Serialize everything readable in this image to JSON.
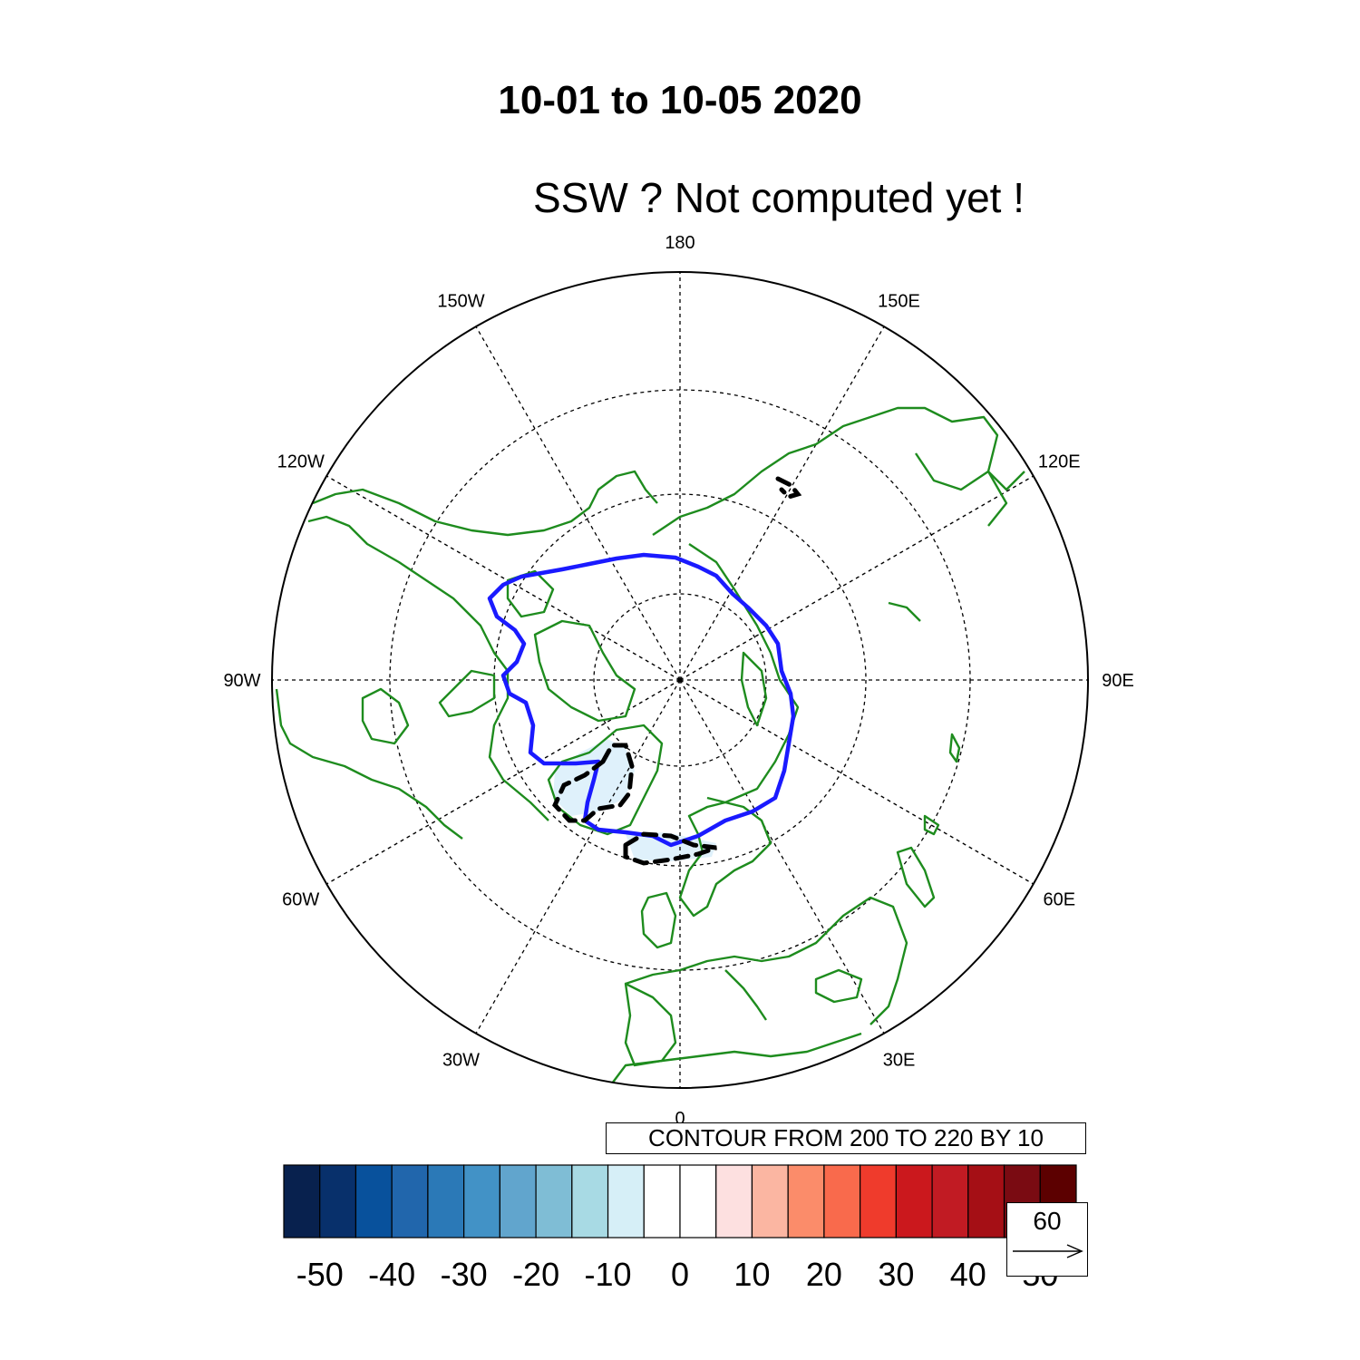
{
  "header": {
    "title": "10-01 to 10-05 2020",
    "subtitle": "SSW ?  Not computed yet !"
  },
  "map": {
    "projection": "north-polar-stereographic",
    "longitude_labels": [
      {
        "lon": 180,
        "text": "180"
      },
      {
        "lon": 150,
        "text": "150E"
      },
      {
        "lon": 120,
        "text": "120E"
      },
      {
        "lon": 90,
        "text": "90E"
      },
      {
        "lon": 60,
        "text": "60E"
      },
      {
        "lon": 30,
        "text": "30E"
      },
      {
        "lon": 0,
        "text": "0"
      },
      {
        "lon": -30,
        "text": "30W"
      },
      {
        "lon": -60,
        "text": "60W"
      },
      {
        "lon": -90,
        "text": "90W"
      },
      {
        "lon": -120,
        "text": "120W"
      },
      {
        "lon": -150,
        "text": "150W"
      }
    ],
    "gridlines": "dashed",
    "coastline_color": "#1e8c1e",
    "contour_line_color": "#1a1aff",
    "negative_contour_color": "#000000"
  },
  "contour_info": "CONTOUR FROM 200 TO 220 BY 10",
  "colorbar": {
    "tick_labels": [
      "-50",
      "-40",
      "-30",
      "-20",
      "-10",
      "0",
      "10",
      "20",
      "30",
      "40",
      "50"
    ],
    "colors": [
      "#08214e",
      "#08306b",
      "#08519c",
      "#2166ac",
      "#2b79b7",
      "#4292c6",
      "#61a5cd",
      "#7fbdd5",
      "#a8dae4",
      "#d6eff7",
      "#ffffff",
      "#ffffff",
      "#fde0e0",
      "#fbb6a2",
      "#fb8c6a",
      "#f96a4c",
      "#ef3b2c",
      "#cb181d",
      "#c11b23",
      "#a50f15",
      "#7a0b12",
      "#5c0000"
    ]
  },
  "reference_vector": {
    "value": "60"
  }
}
